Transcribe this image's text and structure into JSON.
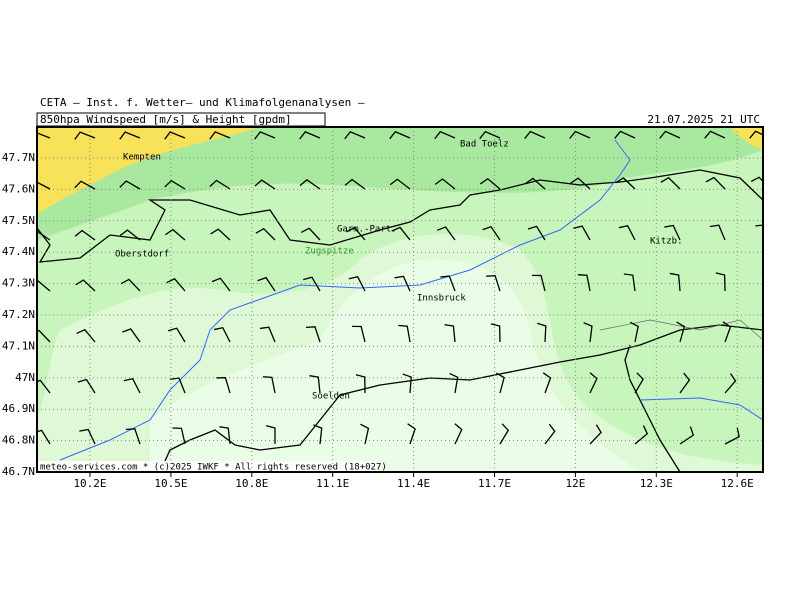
{
  "header": {
    "title": "CETA – Inst. f. Wetter– und Klimafolgenanalysen –",
    "product": "850hpa Windspeed [m/s] & Height [gpdm]",
    "valid_time": "21.07.2025 21 UTC"
  },
  "axes": {
    "x_labels": [
      "10.2E",
      "10.5E",
      "10.8E",
      "11.1E",
      "11.4E",
      "11.7E",
      "12E",
      "12.3E",
      "12.6E"
    ],
    "y_labels": [
      "47.7N",
      "47.6N",
      "47.5N",
      "47.4N",
      "47.3N",
      "47.2N",
      "47.1N",
      "47N",
      "46.9N",
      "46.8N",
      "46.7N"
    ]
  },
  "places": [
    "Kempten",
    "Bad Toelz",
    "Garm.-Part.",
    "Zugspitze",
    "Oberstdorf",
    "Kitzb.",
    "Innsbruck",
    "Soelden"
  ],
  "footer": "meteo-services.com * (c)2025 IWKF * All rights reserved (18+027)"
}
